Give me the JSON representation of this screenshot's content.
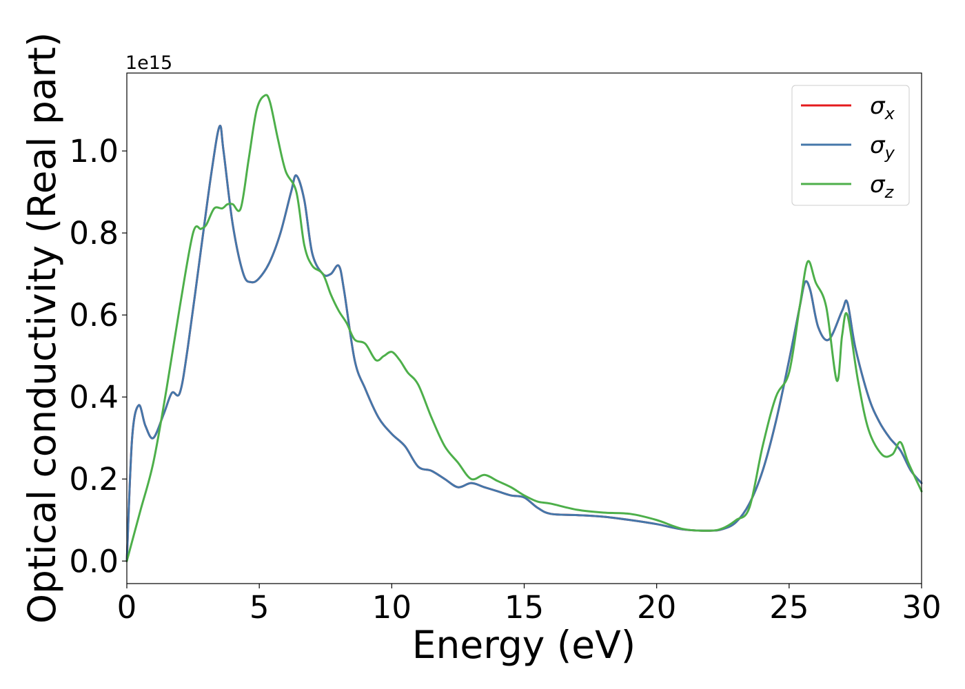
{
  "chart_data": {
    "type": "line",
    "xlabel": "Energy (eV)",
    "ylabel": "Optical conductivity (Real part)",
    "y_offset_text": "1e15",
    "xlim": [
      0,
      30
    ],
    "ylim": [
      -0.055,
      1.19
    ],
    "x_ticks": [
      0,
      5,
      10,
      15,
      20,
      25,
      30
    ],
    "x_tick_labels": [
      "0",
      "5",
      "10",
      "15",
      "20",
      "25",
      "30"
    ],
    "y_ticks": [
      0.0,
      0.2,
      0.4,
      0.6,
      0.8,
      1.0
    ],
    "y_tick_labels": [
      "0.0",
      "0.2",
      "0.4",
      "0.6",
      "0.8",
      "1.0"
    ],
    "grid": false,
    "legend_position": "top-right",
    "series": [
      {
        "name": "σx",
        "symbol": "σ",
        "subscript": "x",
        "color": "#e41a1c",
        "x": [
          0,
          0.2,
          0.45,
          0.7,
          1.0,
          1.4,
          1.7,
          2.0,
          2.3,
          2.8,
          3.2,
          3.5,
          3.65,
          4.0,
          4.4,
          4.7,
          5.0,
          5.4,
          5.8,
          6.2,
          6.4,
          6.7,
          7.0,
          7.4,
          7.7,
          8.0,
          8.2,
          8.6,
          9.0,
          9.5,
          10.0,
          10.5,
          11.0,
          11.5,
          12.0,
          12.5,
          13.0,
          13.5,
          14.0,
          14.5,
          15.0,
          15.5,
          16.0,
          17.0,
          18.0,
          19.0,
          20.0,
          21.0,
          22.0,
          22.5,
          23.0,
          23.5,
          24.0,
          24.5,
          25.0,
          25.4,
          25.6,
          25.8,
          26.1,
          26.5,
          27.0,
          27.2,
          27.5,
          28.0,
          28.4,
          28.8,
          29.2,
          29.6,
          30.0
        ],
        "y": [
          0.0,
          0.3,
          0.38,
          0.33,
          0.3,
          0.36,
          0.41,
          0.41,
          0.52,
          0.76,
          0.95,
          1.06,
          1.0,
          0.82,
          0.7,
          0.68,
          0.69,
          0.73,
          0.8,
          0.9,
          0.94,
          0.88,
          0.75,
          0.7,
          0.7,
          0.72,
          0.66,
          0.49,
          0.42,
          0.35,
          0.31,
          0.28,
          0.23,
          0.22,
          0.2,
          0.18,
          0.19,
          0.18,
          0.17,
          0.16,
          0.155,
          0.13,
          0.115,
          0.112,
          0.108,
          0.1,
          0.09,
          0.077,
          0.074,
          0.078,
          0.095,
          0.14,
          0.22,
          0.34,
          0.49,
          0.62,
          0.68,
          0.66,
          0.57,
          0.54,
          0.61,
          0.63,
          0.52,
          0.4,
          0.34,
          0.3,
          0.27,
          0.22,
          0.19
        ]
      },
      {
        "name": "σy",
        "symbol": "σ",
        "subscript": "y",
        "color": "#4477aa",
        "x": [
          0,
          0.2,
          0.45,
          0.7,
          1.0,
          1.4,
          1.7,
          2.0,
          2.3,
          2.8,
          3.2,
          3.5,
          3.65,
          4.0,
          4.4,
          4.7,
          5.0,
          5.4,
          5.8,
          6.2,
          6.4,
          6.7,
          7.0,
          7.4,
          7.7,
          8.0,
          8.2,
          8.6,
          9.0,
          9.5,
          10.0,
          10.5,
          11.0,
          11.5,
          12.0,
          12.5,
          13.0,
          13.5,
          14.0,
          14.5,
          15.0,
          15.5,
          16.0,
          17.0,
          18.0,
          19.0,
          20.0,
          21.0,
          22.0,
          22.5,
          23.0,
          23.5,
          24.0,
          24.5,
          25.0,
          25.4,
          25.6,
          25.8,
          26.1,
          26.5,
          27.0,
          27.2,
          27.5,
          28.0,
          28.4,
          28.8,
          29.2,
          29.6,
          30.0
        ],
        "y": [
          0.0,
          0.3,
          0.38,
          0.33,
          0.3,
          0.36,
          0.41,
          0.41,
          0.52,
          0.76,
          0.95,
          1.06,
          1.0,
          0.82,
          0.7,
          0.68,
          0.69,
          0.73,
          0.8,
          0.9,
          0.94,
          0.88,
          0.75,
          0.7,
          0.7,
          0.72,
          0.66,
          0.49,
          0.42,
          0.35,
          0.31,
          0.28,
          0.23,
          0.22,
          0.2,
          0.18,
          0.19,
          0.18,
          0.17,
          0.16,
          0.155,
          0.13,
          0.115,
          0.112,
          0.108,
          0.1,
          0.09,
          0.077,
          0.074,
          0.078,
          0.095,
          0.14,
          0.22,
          0.34,
          0.49,
          0.62,
          0.68,
          0.66,
          0.57,
          0.54,
          0.61,
          0.63,
          0.52,
          0.4,
          0.34,
          0.3,
          0.27,
          0.22,
          0.19
        ]
      },
      {
        "name": "σz",
        "symbol": "σ",
        "subscript": "z",
        "color": "#4daf4a",
        "x": [
          0,
          0.5,
          1.0,
          1.5,
          2.0,
          2.5,
          2.8,
          3.0,
          3.3,
          3.6,
          3.8,
          4.0,
          4.3,
          4.6,
          4.9,
          5.2,
          5.4,
          5.7,
          6.0,
          6.4,
          6.7,
          7.0,
          7.4,
          7.7,
          8.0,
          8.3,
          8.6,
          9.0,
          9.4,
          9.7,
          10.0,
          10.3,
          10.6,
          11.0,
          11.5,
          12.0,
          12.5,
          13.0,
          13.5,
          14.0,
          14.5,
          15.0,
          15.5,
          16.0,
          17.0,
          18.0,
          19.0,
          20.0,
          21.0,
          22.0,
          22.5,
          23.0,
          23.5,
          24.0,
          24.5,
          25.0,
          25.4,
          25.7,
          26.0,
          26.4,
          26.8,
          27.0,
          27.2,
          27.6,
          28.0,
          28.5,
          28.9,
          29.2,
          29.5,
          30.0
        ],
        "y": [
          0.0,
          0.12,
          0.24,
          0.42,
          0.62,
          0.8,
          0.81,
          0.82,
          0.86,
          0.86,
          0.87,
          0.87,
          0.86,
          0.98,
          1.1,
          1.135,
          1.12,
          1.03,
          0.95,
          0.9,
          0.77,
          0.72,
          0.7,
          0.65,
          0.61,
          0.58,
          0.54,
          0.53,
          0.49,
          0.5,
          0.51,
          0.49,
          0.46,
          0.43,
          0.35,
          0.28,
          0.24,
          0.2,
          0.21,
          0.195,
          0.18,
          0.16,
          0.145,
          0.14,
          0.125,
          0.118,
          0.115,
          0.1,
          0.078,
          0.074,
          0.08,
          0.1,
          0.13,
          0.28,
          0.4,
          0.46,
          0.62,
          0.73,
          0.68,
          0.62,
          0.44,
          0.55,
          0.6,
          0.44,
          0.32,
          0.26,
          0.26,
          0.29,
          0.24,
          0.17
        ]
      }
    ]
  }
}
